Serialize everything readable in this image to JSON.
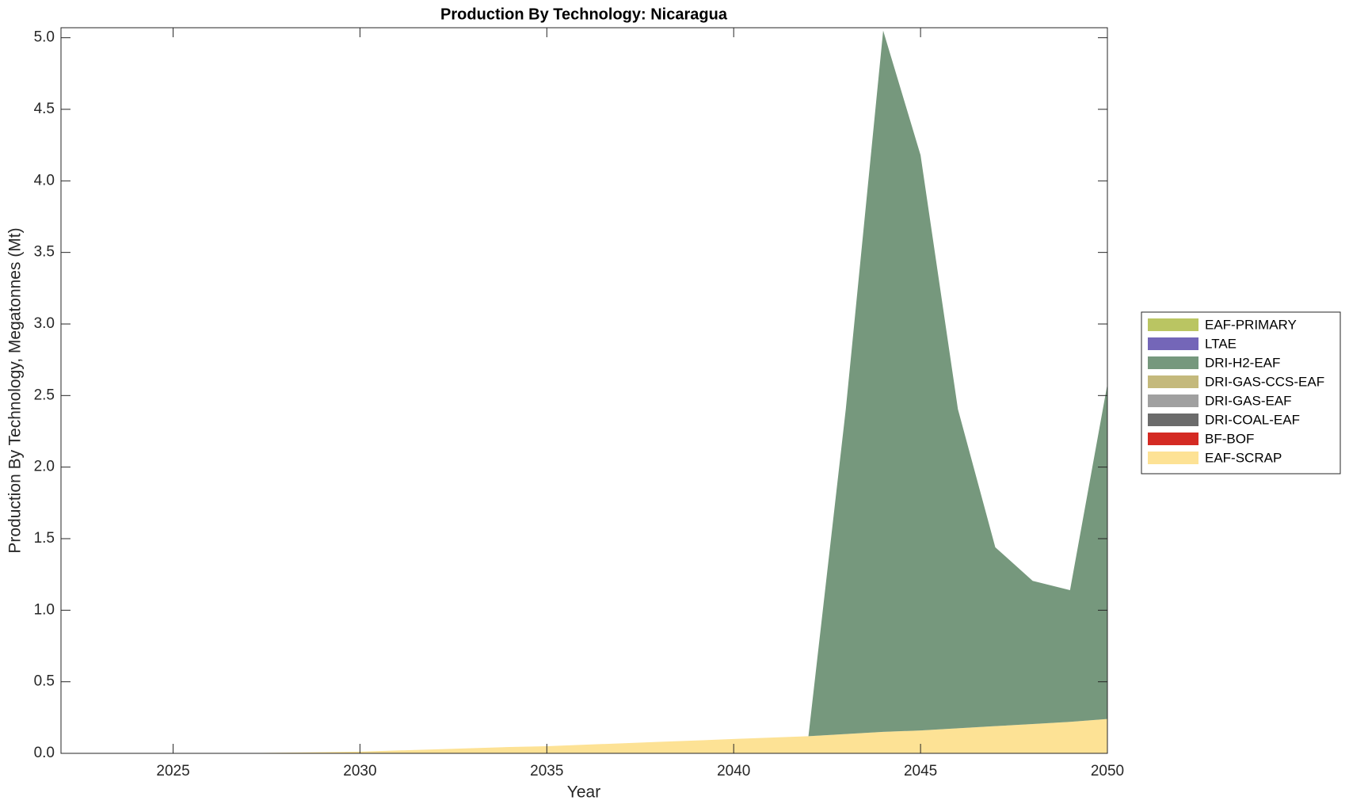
{
  "chart_data": {
    "type": "stacked_area",
    "title": "Production By Technology: Nicaragua",
    "xlabel": "Year",
    "ylabel": "Production By Technology, Megatonnes (Mt)",
    "x": [
      2022,
      2023,
      2024,
      2025,
      2026,
      2027,
      2028,
      2029,
      2030,
      2031,
      2032,
      2033,
      2034,
      2035,
      2036,
      2037,
      2038,
      2039,
      2040,
      2041,
      2042,
      2043,
      2044,
      2045,
      2046,
      2047,
      2048,
      2049,
      2050
    ],
    "series": [
      {
        "name": "EAF-SCRAP",
        "color": "#fde295",
        "values": [
          0,
          0,
          0,
          0,
          0,
          0.002,
          0.005,
          0.008,
          0.012,
          0.02,
          0.028,
          0.036,
          0.044,
          0.05,
          0.06,
          0.07,
          0.08,
          0.09,
          0.1,
          0.11,
          0.12,
          0.135,
          0.15,
          0.16,
          0.175,
          0.19,
          0.205,
          0.22,
          0.24
        ]
      },
      {
        "name": "BF-BOF",
        "color": "#d42a23",
        "values": [
          0,
          0,
          0,
          0,
          0,
          0,
          0,
          0,
          0,
          0,
          0,
          0,
          0,
          0,
          0,
          0,
          0,
          0,
          0,
          0,
          0,
          0,
          0,
          0,
          0,
          0,
          0,
          0,
          0
        ]
      },
      {
        "name": "DRI-COAL-EAF",
        "color": "#6b6b6b",
        "values": [
          0,
          0,
          0,
          0,
          0,
          0,
          0,
          0,
          0,
          0,
          0,
          0,
          0,
          0,
          0,
          0,
          0,
          0,
          0,
          0,
          0,
          0,
          0,
          0,
          0,
          0,
          0,
          0,
          0
        ]
      },
      {
        "name": "DRI-GAS-EAF",
        "color": "#a0a0a0",
        "values": [
          0,
          0,
          0,
          0,
          0,
          0,
          0,
          0,
          0,
          0,
          0,
          0,
          0,
          0,
          0,
          0,
          0,
          0,
          0,
          0,
          0,
          0,
          0,
          0,
          0,
          0,
          0,
          0,
          0
        ]
      },
      {
        "name": "DRI-GAS-CCS-EAF",
        "color": "#c4b97c",
        "values": [
          0,
          0,
          0,
          0,
          0,
          0,
          0,
          0,
          0,
          0,
          0,
          0,
          0,
          0,
          0,
          0,
          0,
          0,
          0,
          0,
          0,
          0,
          0,
          0,
          0,
          0,
          0,
          0,
          0
        ]
      },
      {
        "name": "DRI-H2-EAF",
        "color": "#76987d",
        "values": [
          0,
          0,
          0,
          0,
          0,
          0,
          0,
          0,
          0,
          0,
          0,
          0,
          0,
          0,
          0,
          0,
          0,
          0,
          0,
          0,
          0,
          2.27,
          4.9,
          4.02,
          2.23,
          1.25,
          1.0,
          0.92,
          2.34
        ]
      },
      {
        "name": "LTAE",
        "color": "#7466b8",
        "values": [
          0,
          0,
          0,
          0,
          0,
          0,
          0,
          0,
          0,
          0,
          0,
          0,
          0,
          0,
          0,
          0,
          0,
          0,
          0,
          0,
          0,
          0,
          0,
          0,
          0,
          0,
          0,
          0,
          0
        ]
      },
      {
        "name": "EAF-PRIMARY",
        "color": "#bac562",
        "values": [
          0,
          0,
          0,
          0,
          0,
          0,
          0,
          0,
          0,
          0,
          0,
          0,
          0,
          0,
          0,
          0,
          0,
          0,
          0,
          0,
          0,
          0,
          0,
          0,
          0,
          0,
          0,
          0,
          0
        ]
      }
    ],
    "xlim": [
      2022,
      2050
    ],
    "xticks": [
      2025,
      2030,
      2035,
      2040,
      2045,
      2050
    ],
    "ylim": [
      0,
      5.07
    ],
    "yticks": [
      {
        "value": 0,
        "label": "0.0"
      },
      0.5,
      {
        "value": 1,
        "label": "1.0"
      },
      1.5,
      {
        "value": 2,
        "label": "2.0"
      },
      2.5,
      {
        "value": 3,
        "label": "3.0"
      },
      3.5,
      {
        "value": 4,
        "label": "4.0"
      },
      4.5,
      {
        "value": 5,
        "label": "5.0"
      }
    ],
    "grid": false,
    "legend": "right"
  }
}
